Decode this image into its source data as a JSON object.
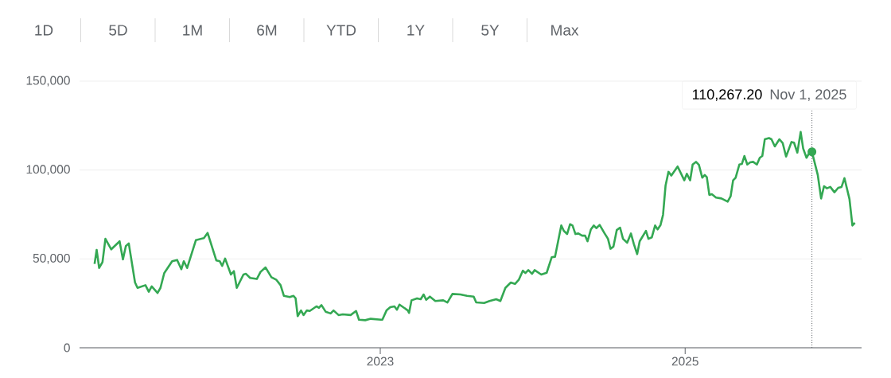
{
  "chart_data": {
    "type": "line",
    "color": "#34a853",
    "x": [
      "2021-02-15",
      "2021-02-20",
      "2021-02-26",
      "2021-03-06",
      "2021-03-13",
      "2021-03-27",
      "2021-04-08",
      "2021-04-16",
      "2021-04-24",
      "2021-05-01",
      "2021-05-08",
      "2021-05-23",
      "2021-05-29",
      "2021-06-17",
      "2021-06-25",
      "2021-07-02",
      "2021-07-16",
      "2021-07-23",
      "2021-08-01",
      "2021-08-20",
      "2021-09-01",
      "2021-09-11",
      "2021-09-17",
      "2021-09-25",
      "2021-10-16",
      "2021-11-04",
      "2021-11-13",
      "2021-12-04",
      "2021-12-12",
      "2021-12-18",
      "2021-12-25",
      "2022-01-08",
      "2022-01-15",
      "2022-01-22",
      "2022-02-07",
      "2022-02-13",
      "2022-02-23",
      "2022-03-11",
      "2022-03-20",
      "2022-04-01",
      "2022-04-15",
      "2022-04-27",
      "2022-05-07",
      "2022-05-15",
      "2022-05-29",
      "2022-06-07",
      "2022-06-12",
      "2022-06-17",
      "2022-06-25",
      "2022-07-01",
      "2022-07-09",
      "2022-07-16",
      "2022-08-01",
      "2022-08-07",
      "2022-08-13",
      "2022-08-23",
      "2022-09-04",
      "2022-09-11",
      "2022-09-23",
      "2022-10-03",
      "2022-10-22",
      "2022-11-04",
      "2022-11-11",
      "2022-11-26",
      "2022-12-09",
      "2023-01-03",
      "2023-01-06",
      "2023-01-16",
      "2023-01-25",
      "2023-02-04",
      "2023-02-10",
      "2023-02-16",
      "2023-03-08",
      "2023-03-11",
      "2023-03-17",
      "2023-03-30",
      "2023-04-08",
      "2023-04-15",
      "2023-04-21",
      "2023-04-30",
      "2023-05-13",
      "2023-06-01",
      "2023-06-11",
      "2023-06-23",
      "2023-07-12",
      "2023-07-28",
      "2023-08-13",
      "2023-08-19",
      "2023-09-07",
      "2023-09-20",
      "2023-10-06",
      "2023-10-16",
      "2023-10-28",
      "2023-11-10",
      "2023-11-20",
      "2023-11-29",
      "2023-12-09",
      "2023-12-15",
      "2023-12-22",
      "2023-12-31",
      "2024-01-06",
      "2024-01-22",
      "2024-02-04",
      "2024-02-16",
      "2024-02-24",
      "2024-03-10",
      "2024-03-16",
      "2024-03-24",
      "2024-03-31",
      "2024-04-06",
      "2024-04-13",
      "2024-04-20",
      "2024-04-29",
      "2024-05-06",
      "2024-05-12",
      "2024-05-20",
      "2024-05-27",
      "2024-06-02",
      "2024-06-10",
      "2024-06-22",
      "2024-06-30",
      "2024-07-06",
      "2024-07-13",
      "2024-07-21",
      "2024-07-29",
      "2024-08-05",
      "2024-08-15",
      "2024-08-24",
      "2024-08-31",
      "2024-09-08",
      "2024-09-14",
      "2024-09-29",
      "2024-10-05",
      "2024-10-13",
      "2024-10-21",
      "2024-10-27",
      "2024-11-03",
      "2024-11-09",
      "2024-11-15",
      "2024-11-22",
      "2024-11-29",
      "2024-12-14",
      "2024-12-30",
      "2025-01-05",
      "2025-01-13",
      "2025-01-19",
      "2025-01-27",
      "2025-02-03",
      "2025-02-11",
      "2025-02-17",
      "2025-02-22",
      "2025-02-28",
      "2025-03-06",
      "2025-03-16",
      "2025-03-29",
      "2025-04-13",
      "2025-04-20",
      "2025-04-26",
      "2025-05-02",
      "2025-05-11",
      "2025-05-17",
      "2025-05-23",
      "2025-05-30",
      "2025-06-06",
      "2025-06-13",
      "2025-06-22",
      "2025-06-29",
      "2025-07-05",
      "2025-07-11",
      "2025-07-21",
      "2025-07-27",
      "2025-08-04",
      "2025-08-15",
      "2025-08-23",
      "2025-08-31",
      "2025-09-13",
      "2025-09-19",
      "2025-09-27",
      "2025-10-05",
      "2025-10-11",
      "2025-10-19",
      "2025-10-25",
      "2025-11-01",
      "2025-11-15",
      "2025-11-23",
      "2025-11-30",
      "2025-12-07",
      "2025-12-15",
      "2025-12-25",
      "2026-01-03",
      "2026-01-11",
      "2026-01-18",
      "2026-01-30",
      "2026-02-06",
      "2026-02-12"
    ],
    "values": [
      47200,
      55100,
      44900,
      48200,
      61300,
      55400,
      58100,
      59900,
      49700,
      57200,
      58700,
      36700,
      33700,
      35200,
      31500,
      34500,
      30800,
      33700,
      42000,
      48700,
      49400,
      44200,
      48700,
      44900,
      60600,
      61700,
      64600,
      49100,
      48700,
      46100,
      50200,
      41200,
      43100,
      33700,
      41200,
      41600,
      39300,
      38700,
      42700,
      45200,
      39700,
      38200,
      35200,
      29200,
      28500,
      29200,
      27800,
      17800,
      21000,
      18400,
      21000,
      20700,
      23300,
      22500,
      24000,
      20300,
      19300,
      21000,
      18400,
      18800,
      18400,
      20700,
      15800,
      15500,
      16300,
      15800,
      15800,
      21000,
      22800,
      23300,
      21400,
      24300,
      21000,
      19600,
      26700,
      27800,
      27300,
      30000,
      27000,
      28800,
      26300,
      26700,
      25500,
      30300,
      30000,
      29200,
      28800,
      25500,
      25200,
      26300,
      27300,
      26300,
      33700,
      36700,
      35900,
      38200,
      43400,
      42000,
      43700,
      41600,
      43700,
      41200,
      42200,
      50900,
      51200,
      68800,
      65800,
      64000,
      69500,
      68800,
      64000,
      64300,
      63100,
      63100,
      59900,
      66600,
      68800,
      67300,
      69100,
      64300,
      61300,
      55700,
      56900,
      66200,
      67600,
      61300,
      59100,
      64300,
      58400,
      52700,
      59900,
      65800,
      61300,
      62100,
      68800,
      66600,
      69100,
      74800,
      91200,
      99000,
      96900,
      102000,
      94200,
      97900,
      94200,
      103100,
      104600,
      102900,
      95700,
      97200,
      96000,
      86000,
      86400,
      84500,
      84000,
      82200,
      85200,
      94200,
      95700,
      103100,
      103400,
      107900,
      103100,
      104300,
      104600,
      103100,
      106900,
      107900,
      117300,
      118000,
      117300,
      113300,
      117300,
      115100,
      107600,
      115800,
      115400,
      109800,
      121400,
      112100,
      106900,
      109400,
      110267.2,
      97200,
      84000,
      90900,
      89700,
      90500,
      87500,
      90000,
      90500,
      95400,
      83700,
      68800,
      70300
    ],
    "xlim": [
      "2021-01-10",
      "2026-02-28"
    ],
    "xticks": [
      {
        "value": "2023-01-01",
        "label": "2023"
      },
      {
        "value": "2025-01-01",
        "label": "2025"
      }
    ],
    "ylim": [
      0,
      150000
    ],
    "yticks": [
      {
        "value": 0,
        "label": "0"
      },
      {
        "value": 50000,
        "label": "50,000"
      },
      {
        "value": 100000,
        "label": "100,000"
      },
      {
        "value": 150000,
        "label": "150,000"
      }
    ],
    "grid": "y",
    "annotations": [
      "1D",
      "5D",
      "1M",
      "6M",
      "YTD",
      "1Y",
      "5Y",
      "Max",
      "110,267.20"
    ],
    "ref_lines": [
      {
        "axis": "x",
        "value": "2025-11-01",
        "label": "Nov 1, 2025",
        "line_style": "dotted",
        "color": "#5f6368"
      }
    ]
  }
}
